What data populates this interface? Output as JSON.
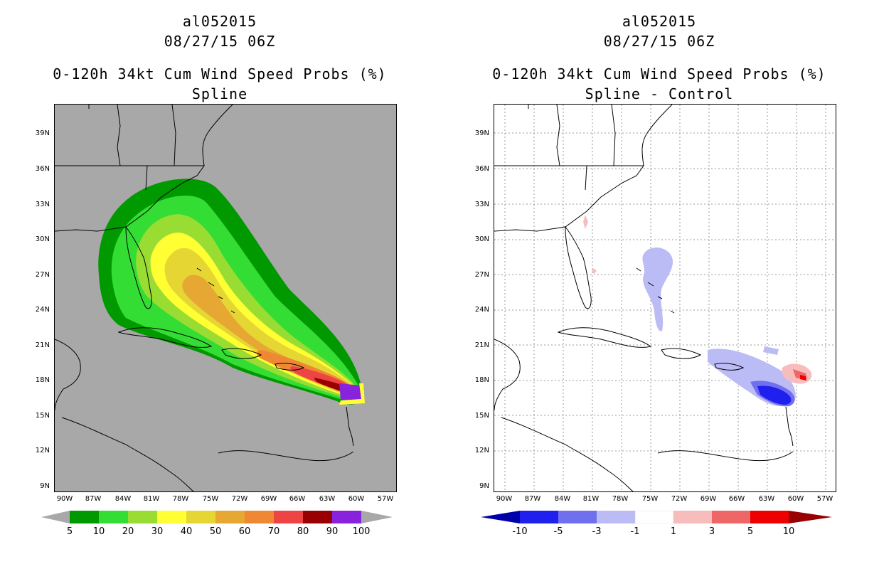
{
  "left": {
    "storm_id": "al052015",
    "datetime": "08/27/15 06Z",
    "product": "0-120h 34kt Cum Wind Speed Probs (%)",
    "subtitle": "Spline",
    "colorbar": {
      "labels": [
        "5",
        "10",
        "20",
        "30",
        "40",
        "50",
        "60",
        "70",
        "80",
        "90",
        "100"
      ],
      "colors": [
        "#009900",
        "#33dd33",
        "#99dd33",
        "#ffff33",
        "#e6d633",
        "#e6a833",
        "#ee8833",
        "#ee4444",
        "#990000",
        "#8822dd"
      ]
    }
  },
  "right": {
    "storm_id": "al052015",
    "datetime": "08/27/15 06Z",
    "product": "0-120h 34kt Cum Wind Speed Probs (%)",
    "subtitle": "Spline - Control",
    "colorbar": {
      "labels": [
        "-10",
        "-5",
        "-3",
        "-1",
        "1",
        "3",
        "5",
        "10"
      ],
      "colors": [
        "#0000aa",
        "#1f1fee",
        "#7070ee",
        "#bbbbf5",
        "#ffffff",
        "#f7bcbc",
        "#ee6666",
        "#ee0000",
        "#990000"
      ]
    }
  },
  "axes": {
    "lat_labels": [
      "39N",
      "36N",
      "33N",
      "30N",
      "27N",
      "24N",
      "21N",
      "18N",
      "15N",
      "12N",
      "9N"
    ],
    "lon_labels": [
      "90W",
      "87W",
      "84W",
      "81W",
      "78W",
      "75W",
      "72W",
      "69W",
      "66W",
      "63W",
      "60W",
      "57W"
    ]
  },
  "colors": {
    "land_bg": "#a8a8a8",
    "diff_bg": "#ffffff",
    "coast": "#000000"
  }
}
